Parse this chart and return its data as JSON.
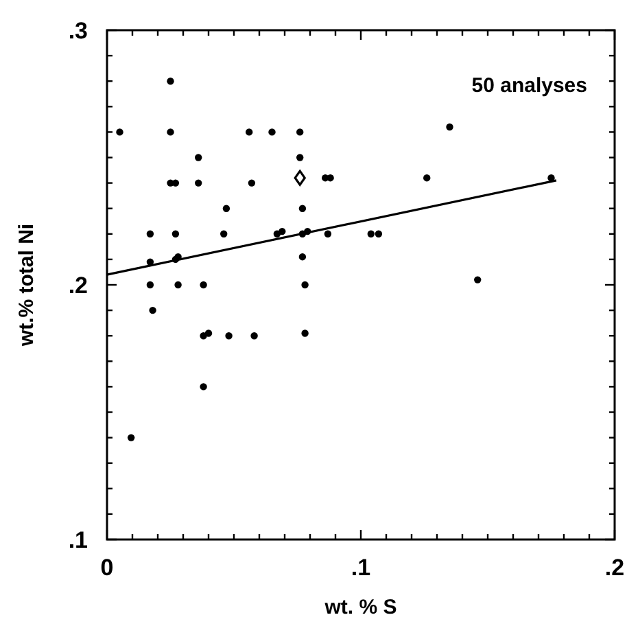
{
  "chart_data": {
    "type": "scatter",
    "xlabel": "wt. % S",
    "ylabel": "wt.% total Ni",
    "annotations": [
      "50 analyses"
    ],
    "xlim": [
      0,
      0.2
    ],
    "ylim": [
      0.1,
      0.3
    ],
    "xticks": [
      {
        "value": 0,
        "label": "0"
      },
      {
        "value": 0.01,
        "label": null
      },
      {
        "value": 0.02,
        "label": null
      },
      {
        "value": 0.03,
        "label": null
      },
      {
        "value": 0.04,
        "label": null
      },
      {
        "value": 0.05,
        "label": null
      },
      {
        "value": 0.06,
        "label": null
      },
      {
        "value": 0.07,
        "label": null
      },
      {
        "value": 0.08,
        "label": null
      },
      {
        "value": 0.09,
        "label": null
      },
      {
        "value": 0.1,
        "label": ".1"
      },
      {
        "value": 0.11,
        "label": null
      },
      {
        "value": 0.12,
        "label": null
      },
      {
        "value": 0.13,
        "label": null
      },
      {
        "value": 0.14,
        "label": null
      },
      {
        "value": 0.15,
        "label": null
      },
      {
        "value": 0.16,
        "label": null
      },
      {
        "value": 0.17,
        "label": null
      },
      {
        "value": 0.18,
        "label": null
      },
      {
        "value": 0.19,
        "label": null
      },
      {
        "value": 0.2,
        "label": ".2"
      }
    ],
    "yticks": [
      {
        "value": 0.1,
        "label": ".1"
      },
      {
        "value": 0.11,
        "label": null
      },
      {
        "value": 0.12,
        "label": null
      },
      {
        "value": 0.13,
        "label": null
      },
      {
        "value": 0.14,
        "label": null
      },
      {
        "value": 0.15,
        "label": null
      },
      {
        "value": 0.16,
        "label": null
      },
      {
        "value": 0.17,
        "label": null
      },
      {
        "value": 0.18,
        "label": null
      },
      {
        "value": 0.19,
        "label": null
      },
      {
        "value": 0.2,
        "label": ".2"
      },
      {
        "value": 0.21,
        "label": null
      },
      {
        "value": 0.22,
        "label": null
      },
      {
        "value": 0.23,
        "label": null
      },
      {
        "value": 0.24,
        "label": null
      },
      {
        "value": 0.25,
        "label": null
      },
      {
        "value": 0.26,
        "label": null
      },
      {
        "value": 0.27,
        "label": null
      },
      {
        "value": 0.28,
        "label": null
      },
      {
        "value": 0.29,
        "label": null
      },
      {
        "value": 0.3,
        "label": ".3"
      }
    ],
    "grid": false,
    "marker": "circle",
    "series": [
      {
        "color": "#000000",
        "x": [
          0.005,
          0.025,
          0.025,
          0.025,
          0.027,
          0.036,
          0.036,
          0.047,
          0.056,
          0.057,
          0.065,
          0.076,
          0.076,
          0.077,
          0.017,
          0.027,
          0.046,
          0.067,
          0.069,
          0.077,
          0.079,
          0.086,
          0.088,
          0.087,
          0.104,
          0.107,
          0.126,
          0.135,
          0.175,
          0.017,
          0.027,
          0.028,
          0.017,
          0.028,
          0.038,
          0.018,
          0.038,
          0.04,
          0.048,
          0.058,
          0.077,
          0.078,
          0.078,
          0.146,
          0.038,
          0.0095
        ],
        "values": [
          0.26,
          0.28,
          0.26,
          0.24,
          0.24,
          0.25,
          0.24,
          0.23,
          0.26,
          0.24,
          0.26,
          0.26,
          0.25,
          0.23,
          0.22,
          0.22,
          0.22,
          0.22,
          0.221,
          0.22,
          0.221,
          0.242,
          0.242,
          0.22,
          0.22,
          0.22,
          0.242,
          0.262,
          0.242,
          0.209,
          0.21,
          0.211,
          0.2,
          0.2,
          0.2,
          0.19,
          0.18,
          0.181,
          0.18,
          0.18,
          0.211,
          0.2,
          0.181,
          0.202,
          0.16,
          0.14
        ]
      },
      {
        "type": "scatter",
        "marker": "diamond",
        "color": "#000000",
        "x": [
          0.076
        ],
        "values": [
          0.242
        ]
      },
      {
        "type": "line",
        "color": "#000000",
        "marker": "none",
        "line_style": "solid",
        "x": [
          0,
          0.177
        ],
        "values": [
          0.204,
          0.241
        ]
      }
    ]
  }
}
